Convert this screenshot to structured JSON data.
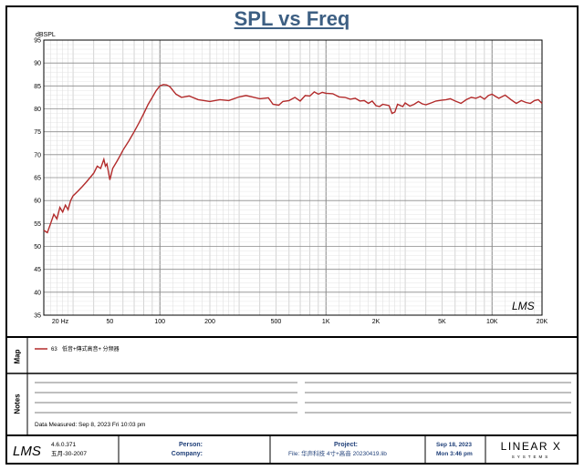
{
  "chart_data": {
    "type": "line",
    "title": "SPL vs Freq",
    "ylabel": "dBSPL",
    "xscale": "log",
    "xlim": [
      20,
      20000
    ],
    "ylim": [
      35,
      95
    ],
    "grid": true,
    "yticks": [
      35,
      40,
      45,
      50,
      55,
      60,
      65,
      70,
      75,
      80,
      85,
      90,
      95
    ],
    "xtick_labels": [
      {
        "value": 20,
        "label": "20 Hz"
      },
      {
        "value": 50,
        "label": "50"
      },
      {
        "value": 100,
        "label": "100"
      },
      {
        "value": 200,
        "label": "200"
      },
      {
        "value": 500,
        "label": "500"
      },
      {
        "value": 1000,
        "label": "1K"
      },
      {
        "value": 2000,
        "label": "2K"
      },
      {
        "value": 5000,
        "label": "5K"
      },
      {
        "value": 10000,
        "label": "10K"
      },
      {
        "value": 20000,
        "label": "20K"
      }
    ],
    "series": [
      {
        "name": "63 低音+傳式高音+ 分频器",
        "color": "#b22b2b",
        "points": [
          [
            20,
            53.5
          ],
          [
            21,
            53
          ],
          [
            22,
            55
          ],
          [
            23,
            57
          ],
          [
            24,
            56
          ],
          [
            25,
            58.5
          ],
          [
            26,
            57.5
          ],
          [
            27,
            59
          ],
          [
            28,
            58
          ],
          [
            29,
            60
          ],
          [
            30,
            61
          ],
          [
            32,
            62
          ],
          [
            34,
            63
          ],
          [
            36,
            64
          ],
          [
            38,
            65
          ],
          [
            40,
            66
          ],
          [
            42,
            67.5
          ],
          [
            44,
            67
          ],
          [
            46,
            69
          ],
          [
            47,
            67.5
          ],
          [
            48,
            68
          ],
          [
            50,
            64.5
          ],
          [
            52,
            67
          ],
          [
            55,
            68.5
          ],
          [
            58,
            70
          ],
          [
            60,
            71
          ],
          [
            65,
            73
          ],
          [
            70,
            75
          ],
          [
            75,
            77
          ],
          [
            80,
            79
          ],
          [
            85,
            81
          ],
          [
            90,
            82.5
          ],
          [
            95,
            84
          ],
          [
            100,
            85
          ],
          [
            105,
            85.3
          ],
          [
            110,
            85.2
          ],
          [
            115,
            84.8
          ],
          [
            120,
            84
          ],
          [
            125,
            83.2
          ],
          [
            135,
            82.5
          ],
          [
            150,
            82.8
          ],
          [
            170,
            82
          ],
          [
            200,
            81.6
          ],
          [
            230,
            82
          ],
          [
            260,
            81.8
          ],
          [
            300,
            82.6
          ],
          [
            330,
            82.9
          ],
          [
            360,
            82.6
          ],
          [
            400,
            82.2
          ],
          [
            450,
            82.4
          ],
          [
            480,
            81
          ],
          [
            520,
            80.8
          ],
          [
            550,
            81.6
          ],
          [
            600,
            81.8
          ],
          [
            650,
            82.5
          ],
          [
            700,
            81.7
          ],
          [
            750,
            82.9
          ],
          [
            800,
            82.8
          ],
          [
            850,
            83.7
          ],
          [
            900,
            83.2
          ],
          [
            950,
            83.6
          ],
          [
            1000,
            83.4
          ],
          [
            1100,
            83.3
          ],
          [
            1200,
            82.6
          ],
          [
            1300,
            82.5
          ],
          [
            1400,
            82.1
          ],
          [
            1500,
            82.3
          ],
          [
            1600,
            81.7
          ],
          [
            1700,
            81.8
          ],
          [
            1800,
            81.2
          ],
          [
            1900,
            81.7
          ],
          [
            2000,
            80.7
          ],
          [
            2100,
            80.5
          ],
          [
            2200,
            81
          ],
          [
            2400,
            80.7
          ],
          [
            2500,
            79
          ],
          [
            2600,
            79.3
          ],
          [
            2700,
            81
          ],
          [
            2900,
            80.5
          ],
          [
            3000,
            81.3
          ],
          [
            3200,
            80.6
          ],
          [
            3400,
            81
          ],
          [
            3600,
            81.6
          ],
          [
            3800,
            81.1
          ],
          [
            4000,
            80.9
          ],
          [
            4300,
            81.3
          ],
          [
            4600,
            81.7
          ],
          [
            5000,
            81.9
          ],
          [
            5300,
            82
          ],
          [
            5600,
            82.2
          ],
          [
            6000,
            81.7
          ],
          [
            6500,
            81.2
          ],
          [
            7000,
            82
          ],
          [
            7500,
            82.5
          ],
          [
            8000,
            82.3
          ],
          [
            8500,
            82.7
          ],
          [
            9000,
            82.1
          ],
          [
            9500,
            82.9
          ],
          [
            10000,
            83.2
          ],
          [
            10500,
            82.7
          ],
          [
            11000,
            82.3
          ],
          [
            12000,
            83
          ],
          [
            13000,
            82
          ],
          [
            14000,
            81.2
          ],
          [
            15000,
            81.8
          ],
          [
            16000,
            81.4
          ],
          [
            17000,
            81.2
          ],
          [
            18000,
            81.8
          ],
          [
            19000,
            82
          ],
          [
            20000,
            81.2
          ]
        ]
      }
    ]
  },
  "watermark_logo": "LMS",
  "map_panel": {
    "label": "Map",
    "legend_number": "63",
    "legend_text": "低音+傳式高音+ 分频器"
  },
  "notes_panel": {
    "label": "Notes",
    "date_measured": "Data Measured: Sep 8, 2023 Fri 10:03 pm"
  },
  "footer": {
    "logo": "LMS",
    "version": "4.6.0.371",
    "date_cn": "五月-30-2007",
    "person_label": "Person:",
    "company_label": "Company:",
    "project_label": "Project:",
    "file_text": "File: 华声科技  4寸+高音  20230419.lib",
    "date": "Sep 18, 2023",
    "time": "Mon  3:46 pm",
    "brand": "LINEAR X",
    "brand_sub": "SYSTEMS"
  }
}
